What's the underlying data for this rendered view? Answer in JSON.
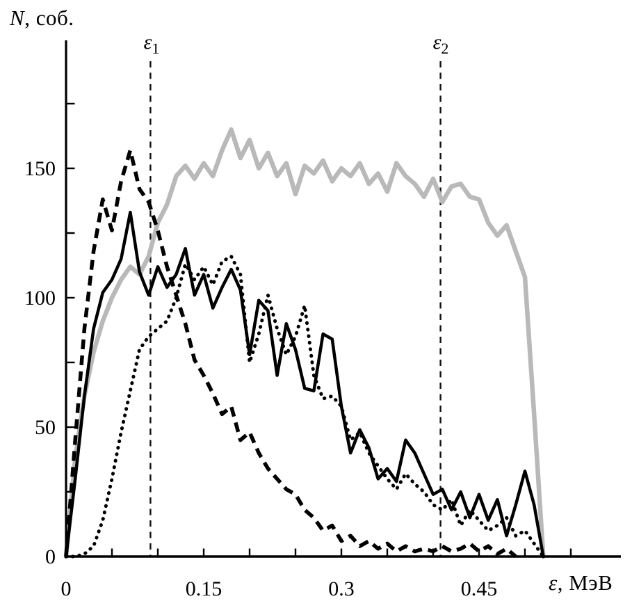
{
  "labels": {
    "y_axis": {
      "symbol": "N",
      "suffix": ", соб."
    },
    "x_axis": {
      "symbol": "ε",
      "suffix": ", МэВ"
    }
  },
  "chart_data": {
    "type": "line",
    "title": "",
    "xlabel": "ε, МэВ",
    "ylabel": "N, соб.",
    "xlim": [
      0,
      0.6
    ],
    "ylim": [
      0,
      200
    ],
    "grid": false,
    "legend": "none",
    "axis_color": "#000000",
    "x_tick_step": 0.05,
    "x_tick_max": 0.55,
    "y_tick_step": 25,
    "y_tick_max": 175,
    "x_tick_labels": [
      {
        "value": 0,
        "label": "0"
      },
      {
        "value": 0.15,
        "label": "0.15"
      },
      {
        "value": 0.3,
        "label": "0.3"
      },
      {
        "value": 0.45,
        "label": "0.45"
      }
    ],
    "y_tick_labels": [
      {
        "value": 0,
        "label": "0"
      },
      {
        "value": 50,
        "label": "50"
      },
      {
        "value": 100,
        "label": "100"
      },
      {
        "value": 150,
        "label": "150"
      }
    ],
    "marker_lines": [
      {
        "symbol": "ε",
        "sub": "1",
        "value": 0.092
      },
      {
        "symbol": "ε",
        "sub": "2",
        "value": 0.408
      }
    ],
    "x_start": 0,
    "x_step": 0.01,
    "series": [
      {
        "name": "gray-wide-spectrum",
        "style": "solid",
        "color": "#b9b9b9",
        "width": 6.5,
        "values": [
          0,
          38,
          62,
          79,
          91,
          100,
          107,
          112,
          109,
          116,
          129,
          136,
          147,
          151,
          146,
          152,
          147,
          157,
          165,
          154,
          161,
          150,
          156,
          147,
          152,
          140,
          151,
          148,
          153,
          145,
          150,
          147,
          152,
          144,
          148,
          141,
          152,
          147,
          144,
          139,
          146,
          137,
          143,
          144,
          139,
          138,
          129,
          124,
          128,
          118,
          108,
          55,
          0
        ]
      },
      {
        "name": "black-solid-spectrum",
        "style": "solid",
        "color": "#000000",
        "width": 4.5,
        "values": [
          0,
          30,
          62,
          88,
          102,
          107,
          115,
          133,
          110,
          101,
          112,
          104,
          109,
          119,
          101,
          109,
          96,
          104,
          111,
          103,
          78,
          99,
          95,
          70,
          90,
          80,
          65,
          64,
          86,
          84,
          58,
          40,
          49,
          42,
          30,
          34,
          29,
          45,
          40,
          32,
          24,
          26,
          18,
          25,
          15,
          24,
          14,
          22,
          8,
          20,
          33,
          20,
          0
        ]
      },
      {
        "name": "black-dashed-spectrum",
        "style": "dashed",
        "color": "#000000",
        "width": 5.5,
        "values": [
          0,
          45,
          88,
          118,
          138,
          126,
          145,
          157,
          142,
          137,
          126,
          112,
          101,
          90,
          76,
          70,
          63,
          55,
          58,
          45,
          48,
          40,
          34,
          30,
          26,
          24,
          18,
          15,
          10,
          12,
          6,
          8,
          4,
          6,
          3,
          5,
          2,
          4,
          2,
          3,
          2,
          4,
          2,
          3,
          5,
          2,
          4,
          1,
          3,
          0
        ]
      },
      {
        "name": "black-dotted-spectrum",
        "style": "dotted",
        "color": "#000000",
        "width": 5,
        "values": [
          0,
          0,
          1,
          4,
          14,
          30,
          48,
          64,
          80,
          85,
          88,
          91,
          100,
          113,
          107,
          112,
          105,
          114,
          116,
          109,
          75,
          86,
          101,
          88,
          78,
          85,
          97,
          70,
          61,
          62,
          58,
          45,
          48,
          40,
          35,
          30,
          26,
          32,
          28,
          25,
          20,
          18,
          22,
          12,
          18,
          14,
          10,
          12,
          15,
          8,
          10,
          5,
          0
        ]
      }
    ]
  }
}
